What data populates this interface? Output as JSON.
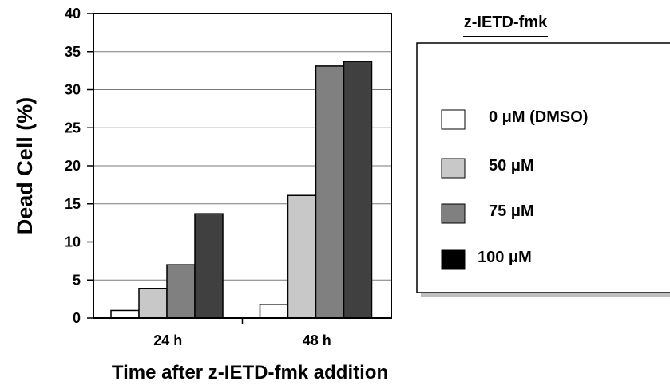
{
  "chart_data": {
    "type": "bar",
    "categories": [
      "24 h",
      "48 h"
    ],
    "series": [
      {
        "name": "0 μM (DMSO)",
        "values": [
          1.0,
          1.8
        ],
        "color": "#ffffff"
      },
      {
        "name": "50 μM",
        "values": [
          3.9,
          16.1
        ],
        "color": "#c8c8c8"
      },
      {
        "name": "75 μM",
        "values": [
          7.0,
          33.1
        ],
        "color": "#808080"
      },
      {
        "name": "100 μM",
        "values": [
          13.7,
          33.7
        ],
        "color": "#404040"
      }
    ],
    "legend_swatch_colors": [
      "#ffffff",
      "#c8c8c8",
      "#808080",
      "#000000"
    ],
    "title": "",
    "xlabel": "Time after z-IETD-fmk addition",
    "ylabel": "Dead Cell (%)",
    "ylim": [
      0,
      40
    ],
    "yticks": [
      0,
      5,
      10,
      15,
      20,
      25,
      30,
      35,
      40
    ],
    "grid": "horizontal",
    "legend_title": "z-IETD-fmk",
    "legend_position": "right"
  }
}
